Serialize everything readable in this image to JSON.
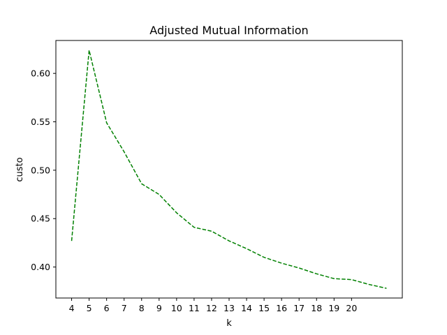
{
  "chart_data": {
    "type": "line",
    "title": "Adjusted Mutual Information",
    "xlabel": "k",
    "ylabel": "custo",
    "x": [
      4,
      5,
      6,
      7,
      8,
      9,
      10,
      11,
      12,
      13,
      14,
      15,
      16,
      17,
      18,
      19,
      20,
      21,
      22
    ],
    "series": [
      {
        "values": [
          0.427,
          0.624,
          0.549,
          0.519,
          0.486,
          0.475,
          0.456,
          0.441,
          0.437,
          0.427,
          0.419,
          0.41,
          0.404,
          0.399,
          0.393,
          0.388,
          0.387,
          0.382,
          0.378
        ],
        "color": "#008000",
        "style": "dashed"
      }
    ],
    "xticks": [
      4,
      5,
      6,
      7,
      8,
      9,
      10,
      11,
      12,
      13,
      14,
      15,
      16,
      17,
      18,
      19,
      20
    ],
    "yticks": [
      0.4,
      0.45,
      0.5,
      0.55,
      0.6
    ],
    "ytick_labels": [
      "0.40",
      "0.45",
      "0.50",
      "0.55",
      "0.60"
    ],
    "xlim": [
      3.1,
      22.9
    ],
    "ylim": [
      0.368,
      0.634
    ],
    "grid": false,
    "legend": false
  }
}
